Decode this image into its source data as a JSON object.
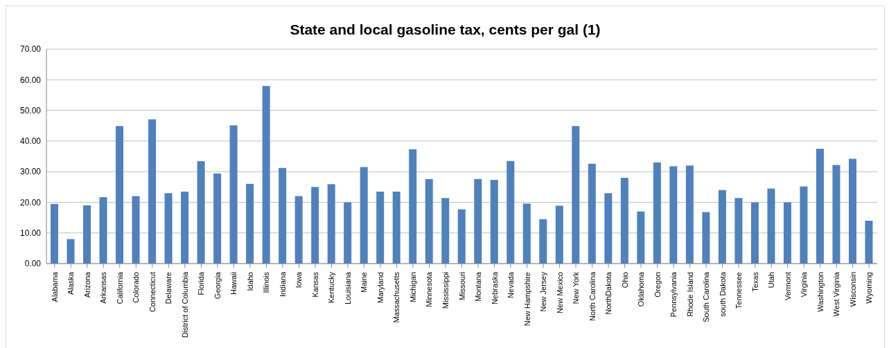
{
  "chart_data": {
    "type": "bar",
    "title": "State and local gasoline tax, cents per gal (1)",
    "categories": [
      "Alabama",
      "Alaska",
      "Arizona",
      "Arkansas",
      "California",
      "Colorado",
      "Connecticut",
      "Delaware",
      "District of Columbia",
      "Florida",
      "Georgia",
      "Hawaii",
      "Idaho",
      "Illinois",
      "Indiana",
      "Iowa",
      "Kansas",
      "Kentucky",
      "Louisiana",
      "Maine",
      "Maryland",
      "Massachusetts",
      "Michigan",
      "Minnesota",
      "Mississippi",
      "Missouri",
      "Montana",
      "Nebraska",
      "Nevada",
      "New Hampshire",
      "New Jersey",
      "New Mexico",
      "New York",
      "North Carolina",
      "NorthDakota",
      "Ohio",
      "Oklahoma",
      "Oregon",
      "Pennsylvania",
      "Rhode Island",
      "South Carolina",
      "south Dakota",
      "Tennessee",
      "Texas",
      "Utah",
      "Vermont",
      "Virginia",
      "Washington",
      "West Virginia",
      "Wisconsin",
      "Wyoming"
    ],
    "values": [
      19.5,
      8.0,
      19.0,
      21.7,
      44.9,
      22.0,
      47.1,
      23.0,
      23.5,
      33.4,
      29.4,
      45.1,
      26.0,
      58.0,
      31.2,
      22.0,
      25.0,
      25.9,
      20.0,
      31.5,
      23.5,
      23.5,
      37.3,
      27.6,
      21.4,
      17.7,
      27.6,
      27.3,
      33.5,
      19.6,
      14.5,
      18.9,
      44.9,
      32.6,
      23.0,
      28.0,
      17.0,
      33.0,
      31.8,
      32.0,
      16.8,
      24.0,
      21.4,
      20.0,
      24.5,
      20.0,
      25.2,
      37.5,
      32.2,
      34.2,
      14.0
    ],
    "color": "#4f81bd",
    "ylim": [
      0,
      70
    ],
    "yticks": [
      {
        "value": 0,
        "label": "0.00"
      },
      {
        "value": 10,
        "label": "10.00"
      },
      {
        "value": 20,
        "label": "20.00"
      },
      {
        "value": 30,
        "label": "30.00"
      },
      {
        "value": 40,
        "label": "40.00"
      },
      {
        "value": 50,
        "label": "50.00"
      },
      {
        "value": 60,
        "label": "60.00"
      },
      {
        "value": 70,
        "label": "70.00"
      }
    ],
    "grid": "y",
    "legend": false
  }
}
